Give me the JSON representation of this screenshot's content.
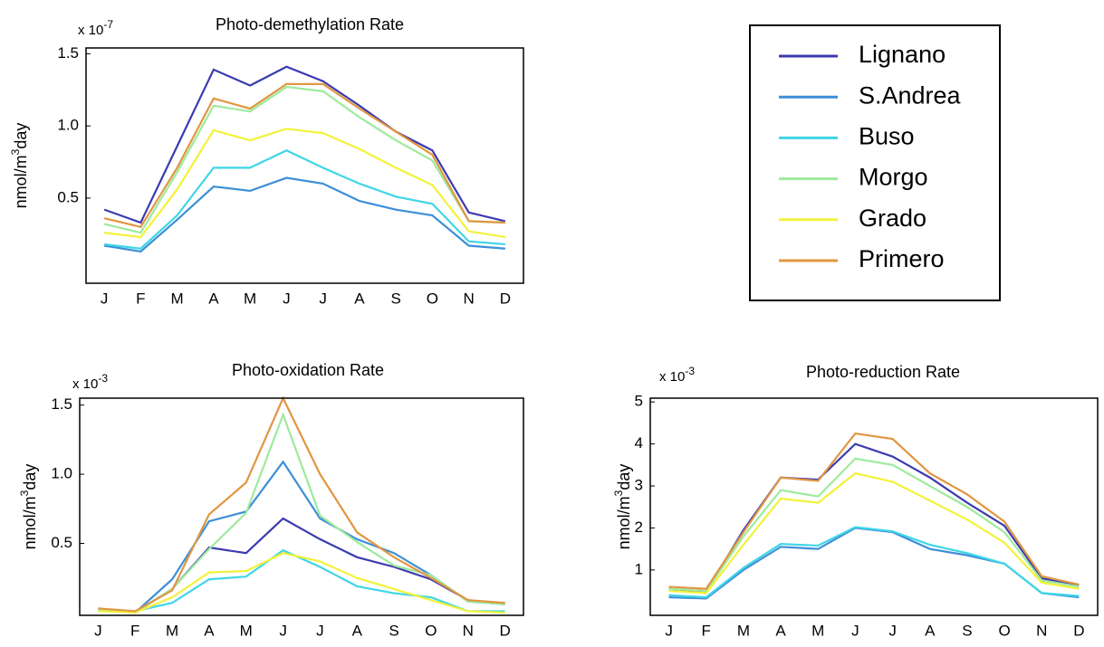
{
  "chart_data": [
    {
      "type": "line",
      "title": "Photo-demethylation Rate",
      "y_multiplier": "x 10",
      "y_multiplier_exponent": "-7",
      "ylabel": "nmol/m",
      "ylabel_sup": "3",
      "ylabel_end": "day",
      "categories": [
        "J",
        "F",
        "M",
        "A",
        "M",
        "J",
        "J",
        "A",
        "S",
        "O",
        "N",
        "D"
      ],
      "ylim": [
        -0.09,
        1.54
      ],
      "yticks": [
        0.5,
        {
          "value": 1,
          "label": "1.0"
        },
        1.5
      ],
      "grid": false,
      "series": [
        {
          "name": "Lignano",
          "color": "#3b3bb0",
          "values": [
            0.42,
            0.33,
            0.86,
            1.39,
            1.28,
            1.41,
            1.31,
            1.14,
            0.96,
            0.83,
            0.4,
            0.34
          ]
        },
        {
          "name": "S.Andrea",
          "color": "#3d8fd8",
          "values": [
            0.17,
            0.13,
            0.35,
            0.58,
            0.55,
            0.64,
            0.6,
            0.48,
            0.42,
            0.38,
            0.17,
            0.15
          ]
        },
        {
          "name": "Buso",
          "color": "#3fd6e6",
          "values": [
            0.18,
            0.15,
            0.38,
            0.71,
            0.71,
            0.83,
            0.71,
            0.6,
            0.51,
            0.46,
            0.2,
            0.18
          ]
        },
        {
          "name": "Morgo",
          "color": "#9eea9e",
          "values": [
            0.32,
            0.26,
            0.68,
            1.14,
            1.1,
            1.27,
            1.24,
            1.06,
            0.9,
            0.76,
            0.34,
            0.33
          ]
        },
        {
          "name": "Grado",
          "color": "#f2f23a",
          "values": [
            0.26,
            0.23,
            0.56,
            0.97,
            0.9,
            0.98,
            0.95,
            0.84,
            0.71,
            0.59,
            0.27,
            0.23
          ]
        },
        {
          "name": "Primero",
          "color": "#e09640",
          "values": [
            0.36,
            0.3,
            0.71,
            1.19,
            1.12,
            1.29,
            1.29,
            1.12,
            0.96,
            0.8,
            0.34,
            0.33
          ]
        }
      ]
    },
    {
      "type": "line",
      "title": "Photo-oxidation Rate",
      "y_multiplier": "x 10",
      "y_multiplier_exponent": "-3",
      "ylabel": "nmol/m",
      "ylabel_sup": "3",
      "ylabel_end": "day",
      "categories": [
        "J",
        "F",
        "M",
        "A",
        "M",
        "J",
        "J",
        "A",
        "S",
        "O",
        "N",
        "D"
      ],
      "ylim": [
        -0.02,
        1.55
      ],
      "yticks": [
        0.5,
        {
          "value": 1,
          "label": "1.0"
        },
        1.5
      ],
      "grid": false,
      "series": [
        {
          "color": "#3b3bb0",
          "values": [
            0.02,
            0.0,
            0.17,
            0.47,
            0.43,
            0.68,
            0.53,
            0.4,
            0.33,
            0.24,
            0.09,
            0.06
          ]
        },
        {
          "color": "#3d8fd8",
          "values": [
            0.03,
            0.0,
            0.24,
            0.66,
            0.73,
            1.09,
            0.68,
            0.53,
            0.43,
            0.27,
            0.08,
            0.06
          ]
        },
        {
          "color": "#3fd6e6",
          "values": [
            0.01,
            0.01,
            0.07,
            0.24,
            0.26,
            0.45,
            0.33,
            0.19,
            0.14,
            0.11,
            0.01,
            0.01
          ]
        },
        {
          "color": "#9eea9e",
          "values": [
            0.02,
            0.0,
            0.17,
            0.46,
            0.72,
            1.43,
            0.7,
            0.51,
            0.34,
            0.27,
            0.08,
            0.06
          ]
        },
        {
          "color": "#f2f23a",
          "values": [
            0.01,
            0.0,
            0.11,
            0.29,
            0.3,
            0.43,
            0.37,
            0.25,
            0.17,
            0.09,
            0.01,
            0.0
          ]
        },
        {
          "color": "#e09640",
          "values": [
            0.03,
            0.01,
            0.16,
            0.71,
            0.94,
            1.55,
            1.0,
            0.58,
            0.4,
            0.25,
            0.09,
            0.07
          ]
        }
      ]
    },
    {
      "type": "line",
      "title": "Photo-reduction Rate",
      "y_multiplier": "x 10",
      "y_multiplier_exponent": "-3",
      "ylabel": "nmol/m",
      "ylabel_sup": "3",
      "ylabel_end": "day",
      "categories": [
        "J",
        "F",
        "M",
        "A",
        "M",
        "J",
        "J",
        "A",
        "S",
        "O",
        "N",
        "D"
      ],
      "ylim": [
        -0.08,
        5.09
      ],
      "yticks": [
        1,
        2,
        3,
        4,
        5
      ],
      "grid": false,
      "series": [
        {
          "color": "#3b3bb0",
          "values": [
            0.55,
            0.48,
            1.95,
            3.2,
            3.15,
            4.0,
            3.7,
            3.2,
            2.6,
            2.05,
            0.8,
            0.65
          ]
        },
        {
          "color": "#3d8fd8",
          "values": [
            0.35,
            0.32,
            1.0,
            1.55,
            1.5,
            2.0,
            1.9,
            1.5,
            1.35,
            1.15,
            0.45,
            0.35
          ]
        },
        {
          "color": "#3fd6e6",
          "values": [
            0.4,
            0.35,
            1.05,
            1.62,
            1.58,
            2.02,
            1.92,
            1.6,
            1.4,
            1.15,
            0.45,
            0.38
          ]
        },
        {
          "color": "#9eea9e",
          "values": [
            0.55,
            0.5,
            1.8,
            2.9,
            2.75,
            3.65,
            3.5,
            3.0,
            2.5,
            1.9,
            0.75,
            0.6
          ]
        },
        {
          "color": "#f2f23a",
          "values": [
            0.5,
            0.45,
            1.6,
            2.7,
            2.6,
            3.3,
            3.1,
            2.65,
            2.2,
            1.65,
            0.7,
            0.55
          ]
        },
        {
          "color": "#e09640",
          "values": [
            0.6,
            0.55,
            1.9,
            3.2,
            3.12,
            4.25,
            4.12,
            3.3,
            2.8,
            2.15,
            0.85,
            0.65
          ]
        }
      ]
    }
  ]
}
